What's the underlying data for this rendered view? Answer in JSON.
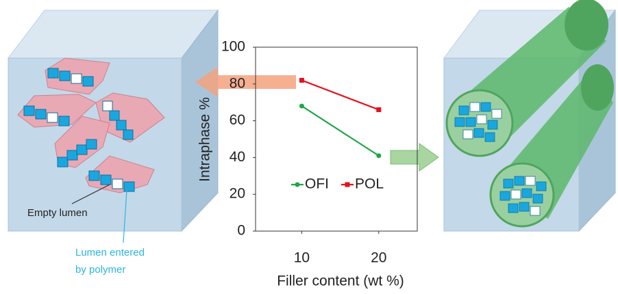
{
  "chart_data": {
    "type": "line",
    "x": [
      10,
      20
    ],
    "xlim": [
      4,
      25
    ],
    "xticks": [
      10,
      20
    ],
    "ylim": [
      0,
      100
    ],
    "yticks": [
      0,
      20,
      40,
      60,
      80,
      100
    ],
    "x_label": "Filler content (wt %)",
    "y_label": "Intraphase %",
    "legend": "center",
    "series": [
      {
        "name": "OFI",
        "color": "#1fa64a",
        "marker": "circle",
        "values": [
          68,
          41
        ]
      },
      {
        "name": "POL",
        "color": "#e4121b",
        "marker": "square",
        "values": [
          82,
          66
        ]
      }
    ],
    "annotations": [
      "Empty lumen",
      [
        "Lumen entered",
        "by polymer"
      ]
    ]
  }
}
